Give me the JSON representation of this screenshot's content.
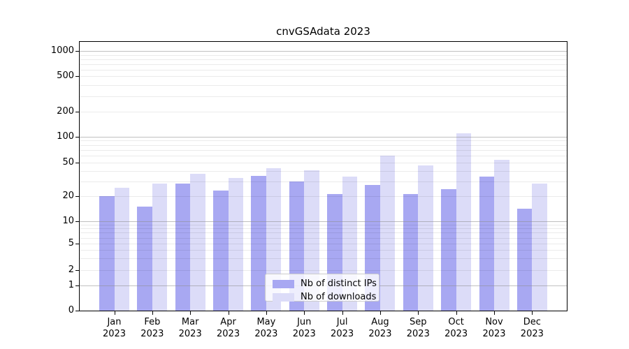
{
  "figure": {
    "background": "#ffffff"
  },
  "chart_data": {
    "type": "bar",
    "title": "cnvGSAdata 2023",
    "categories": [
      "Jan",
      "Feb",
      "Mar",
      "Apr",
      "May",
      "Jun",
      "Jul",
      "Aug",
      "Sep",
      "Oct",
      "Nov",
      "Dec"
    ],
    "category_year": "2023",
    "series": [
      {
        "name": "Nb of distinct IPs",
        "color": "#a8a8f2",
        "values": [
          20,
          15,
          28,
          23,
          35,
          30,
          21,
          27,
          21,
          24,
          34,
          14
        ]
      },
      {
        "name": "Nb of downloads",
        "color": "#dcdcf8",
        "values": [
          25,
          28,
          37,
          33,
          43,
          41,
          34,
          61,
          47,
          110,
          54,
          28
        ]
      }
    ],
    "xlabel": "",
    "ylabel": "",
    "yscale": "symlog",
    "ylim": [
      0,
      1400
    ],
    "ytick_values": [
      0,
      1,
      2,
      5,
      10,
      20,
      50,
      100,
      200,
      500,
      1000
    ],
    "ytick_labels": [
      "0",
      "1",
      "2",
      "5",
      "10",
      "20",
      "50",
      "100",
      "200",
      "500",
      "1000"
    ],
    "major_grid_values": [
      1,
      10,
      100,
      1000
    ],
    "minor_grid_values": [
      2,
      3,
      4,
      5,
      6,
      7,
      8,
      9,
      20,
      30,
      40,
      50,
      60,
      70,
      80,
      90,
      200,
      300,
      400,
      500,
      600,
      700,
      800,
      900
    ],
    "grid": "horizontal, major and minor, drawn over bars",
    "legend_position": "lower center"
  },
  "colors": {
    "major_grid": "#8c8c8c",
    "minor_grid": "#e9e9e9",
    "spine": "#000000",
    "text": "#000000",
    "legend_border": "#cccccc"
  }
}
